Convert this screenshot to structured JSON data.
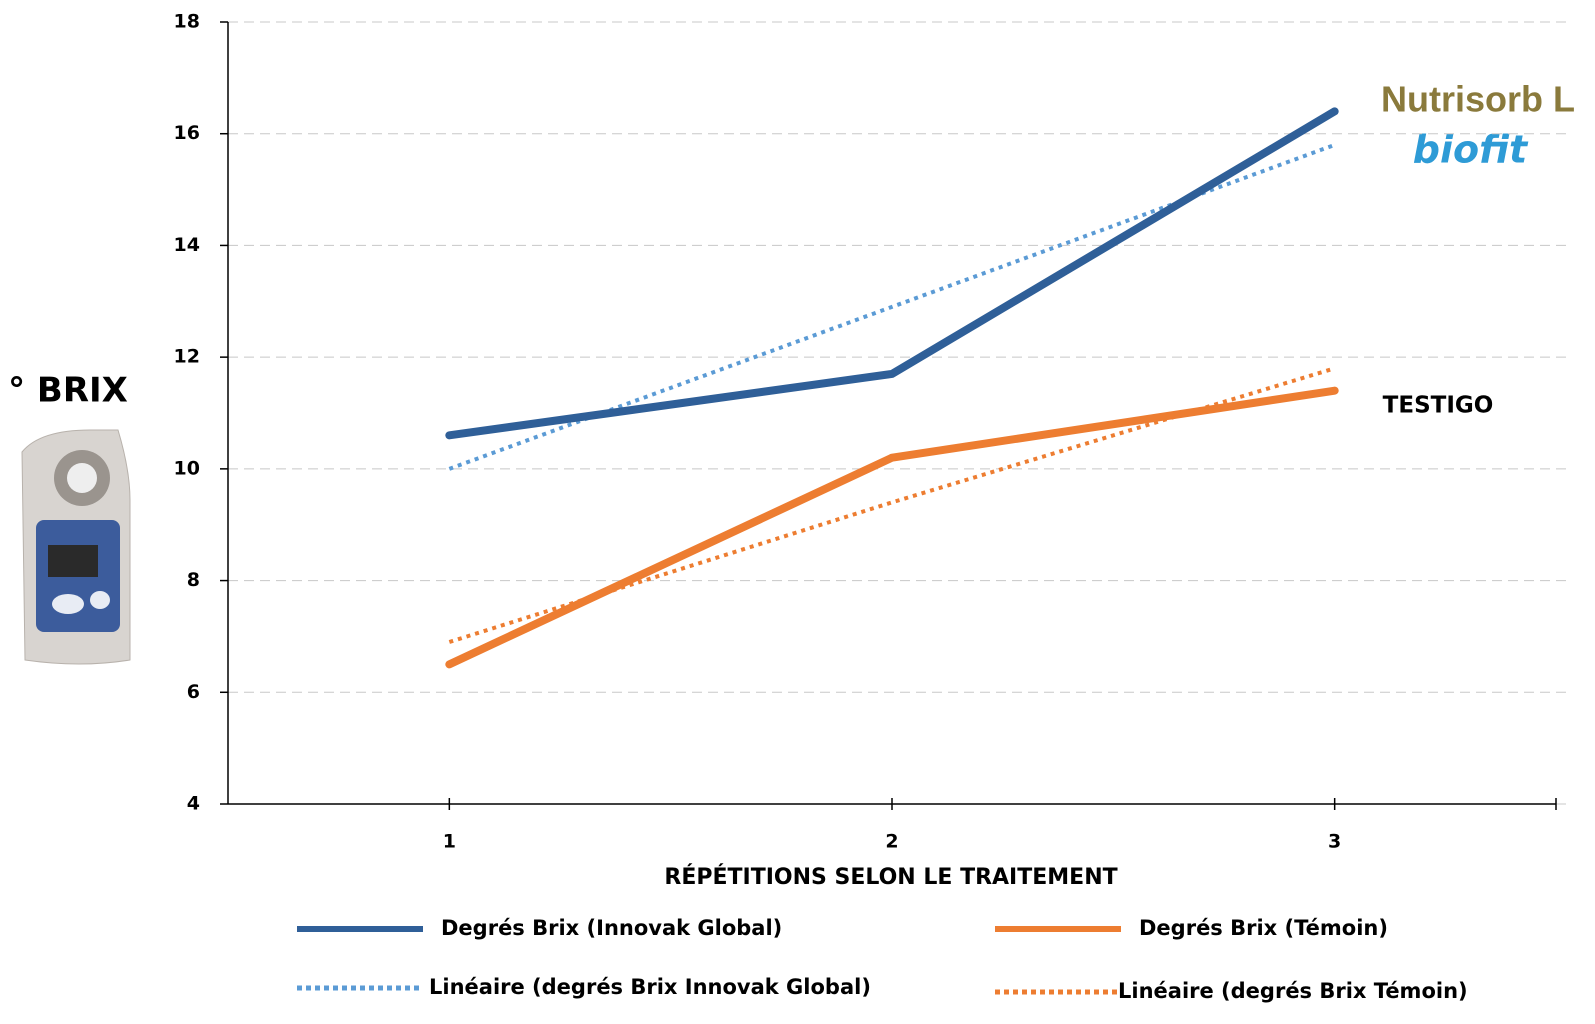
{
  "chart_data": {
    "type": "line",
    "y_label": "° BRIX",
    "x_label": "RÉPÉTITIONS SELON LE TRAITEMENT",
    "categories": [
      "1",
      "2",
      "3"
    ],
    "ylim": [
      4,
      18
    ],
    "yticks": [
      4,
      6,
      8,
      10,
      12,
      14,
      16,
      18
    ],
    "grid": true,
    "series": [
      {
        "name": "Degrés Brix (Innovak Global)",
        "color": "#2f5f98",
        "style": "solid",
        "values": [
          10.6,
          11.7,
          16.4
        ]
      },
      {
        "name": "Degrés Brix (Témoin)",
        "color": "#ed7d31",
        "style": "solid",
        "values": [
          6.5,
          10.2,
          11.4
        ]
      },
      {
        "name": "Linéaire (degrés Brix Innovak Global)",
        "color": "#5b9bd5",
        "style": "dotted",
        "values": [
          10.0,
          12.9,
          15.8
        ]
      },
      {
        "name": "Linéaire (degrés Brix Témoin)",
        "color": "#ed7d31",
        "style": "dotted",
        "values": [
          6.9,
          9.4,
          11.8
        ]
      }
    ],
    "annotations": [
      "TESTIGO"
    ],
    "logo_texts": [
      "Nutrisorb L",
      "biofit"
    ]
  }
}
